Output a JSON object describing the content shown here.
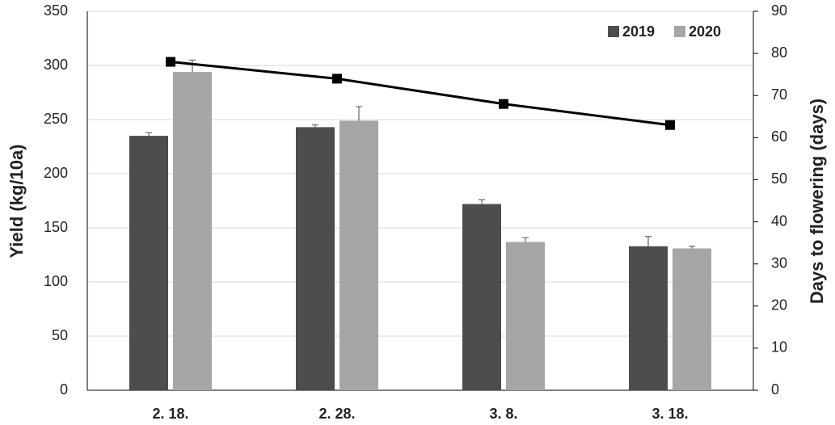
{
  "chart_data": {
    "type": "bar",
    "categories": [
      "2. 18.",
      "2. 28.",
      "3. 8.",
      "3. 18."
    ],
    "y_label": "Yield (kg/10a)",
    "y2_label": "Days to flowering (days)",
    "ylim": [
      0,
      350
    ],
    "yticks": [
      0,
      50,
      100,
      150,
      200,
      250,
      300,
      350
    ],
    "y2lim": [
      0,
      90
    ],
    "y2ticks": [
      0,
      10,
      20,
      30,
      40,
      50,
      60,
      70,
      80,
      90
    ],
    "grid": true,
    "legend": "top-right",
    "series": [
      {
        "name": "2019",
        "color": "#4d4d4d",
        "values": [
          235,
          243,
          172,
          133
        ],
        "errors": [
          3,
          2,
          4,
          9
        ]
      },
      {
        "name": "2020",
        "color": "#a6a6a6",
        "values": [
          294,
          249,
          137,
          131
        ],
        "errors": [
          11,
          13,
          4,
          2
        ]
      }
    ],
    "line_series": {
      "type": "line",
      "axis": "y2",
      "color": "#000000",
      "values": [
        78,
        74,
        68,
        63
      ]
    }
  }
}
